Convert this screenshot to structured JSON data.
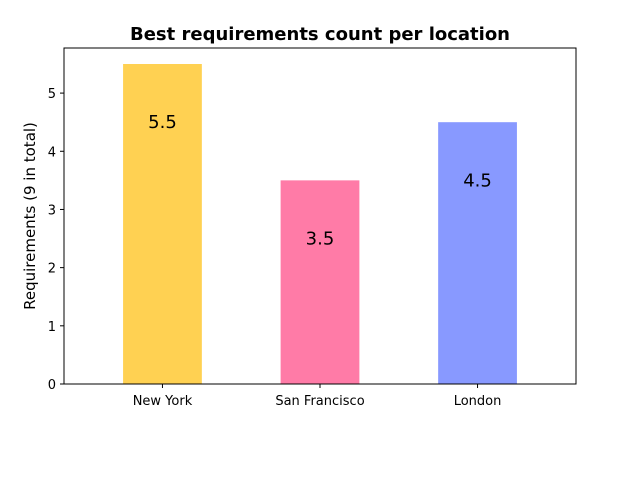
{
  "chart_data": {
    "type": "bar",
    "title": "Best requirements count per location",
    "xlabel": "",
    "ylabel": "Requirements (9 in total)",
    "categories": [
      "New York",
      "San Francisco",
      "London"
    ],
    "values": [
      5.5,
      3.5,
      4.5
    ],
    "data_labels": [
      "5.5",
      "3.5",
      "4.5"
    ],
    "colors": [
      "#FFD152",
      "#FF7BA7",
      "#8899FF"
    ],
    "ylim": [
      0,
      5.775
    ],
    "yticks": [
      0,
      1,
      2,
      3,
      4,
      5
    ],
    "ytick_labels": [
      "0",
      "1",
      "2",
      "3",
      "4",
      "5"
    ],
    "grid": false,
    "legend": "none"
  }
}
